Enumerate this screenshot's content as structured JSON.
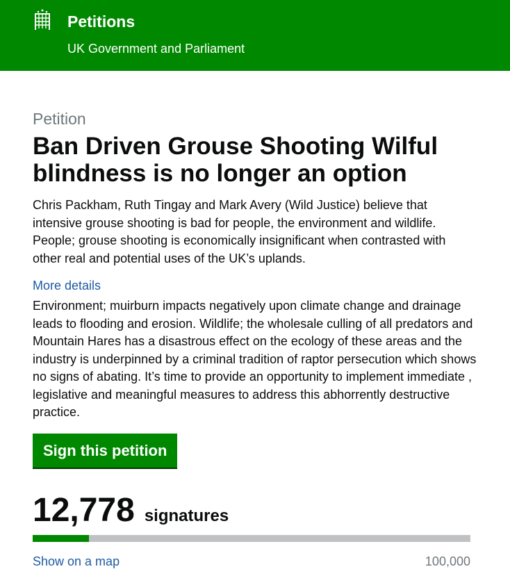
{
  "header": {
    "logo_icon": "portcullis-icon",
    "title": "Petitions",
    "subtitle": "UK Government and Parliament",
    "color": "#008800"
  },
  "petition": {
    "label": "Petition",
    "title": "Ban Driven Grouse Shooting Wilful blindness is no longer an option",
    "summary": "Chris Packham, Ruth Tingay and Mark Avery (Wild Justice) believe that intensive grouse shooting is bad for people, the environment and wildlife. People; grouse shooting is economically insignificant when contrasted with other real and potential uses of the UK’s uplands.",
    "more_details_label": "More details",
    "details": "Environment; muirburn impacts negatively upon climate change and drainage leads to flooding and erosion. Wildlife; the wholesale culling of all predators and Mountain Hares has a disastrous effect on the ecology of these areas and the industry is underpinned by a criminal tradition of raptor persecution which shows no signs of abating. It’s time to provide an opportunity to implement immediate , legislative and meaningful measures to address this abhorrently destructive practice.",
    "sign_button": "Sign this petition"
  },
  "signatures": {
    "count": "12,778",
    "label": "signatures",
    "goal": "100,000",
    "progress_percent": 12.778,
    "map_link": "Show on a map"
  }
}
